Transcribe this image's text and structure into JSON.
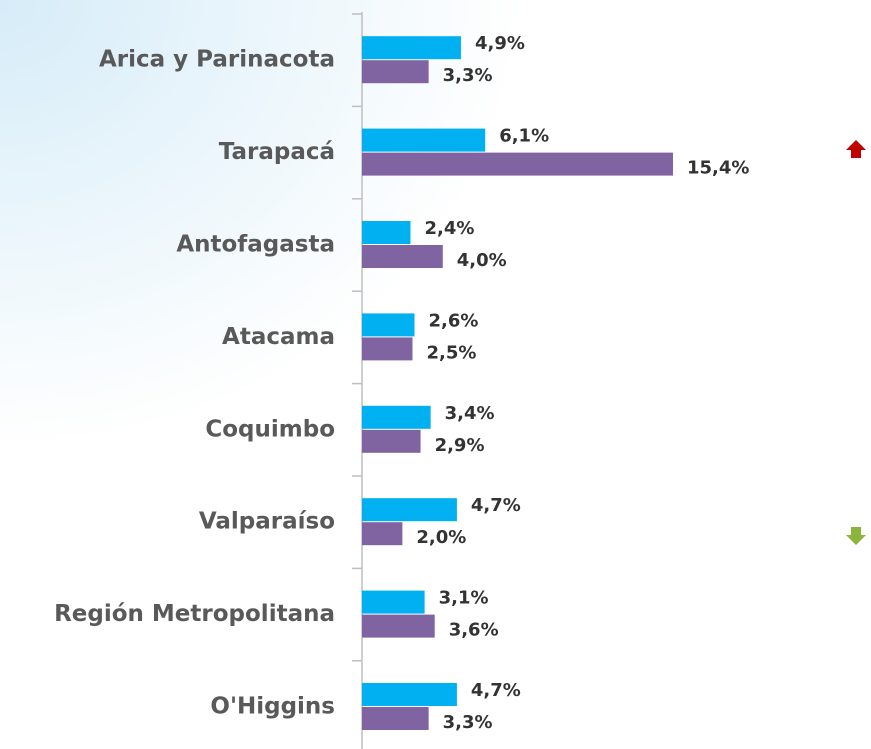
{
  "chart_data": {
    "type": "bar",
    "orientation": "horizontal",
    "categories": [
      "Arica y Parinacota",
      "Tarapacá",
      "Antofagasta",
      "Atacama",
      "Coquimbo",
      "Valparaíso",
      "Región Metropolitana",
      "O'Higgins"
    ],
    "series": [
      {
        "color": "#00b0f0",
        "values": [
          4.9,
          6.1,
          2.4,
          2.6,
          3.4,
          4.7,
          3.1,
          4.7
        ],
        "value_labels": [
          "4,9%",
          "6,1%",
          "2,4%",
          "2,6%",
          "3,4%",
          "4,7%",
          "3,1%",
          "4,7%"
        ]
      },
      {
        "color": "#8064a2",
        "values": [
          3.3,
          15.4,
          4.0,
          2.5,
          2.9,
          2.0,
          3.6,
          3.3
        ],
        "value_labels": [
          "3,3%",
          "15,4%",
          "4,0%",
          "2,5%",
          "2,9%",
          "2,0%",
          "3,6%",
          "3,3%"
        ]
      }
    ]
  }
}
